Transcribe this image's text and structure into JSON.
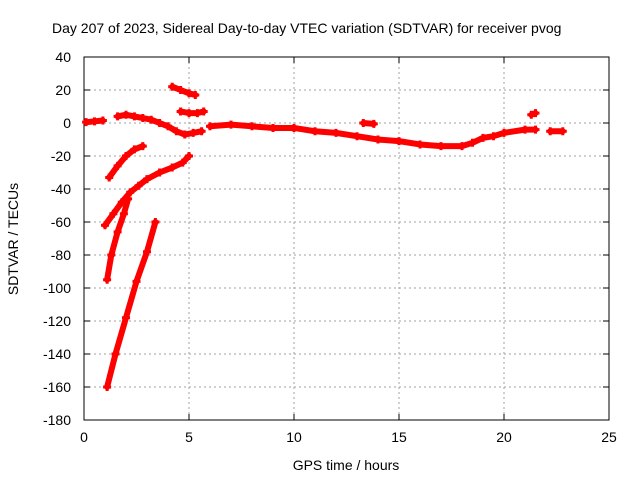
{
  "chart_data": {
    "type": "scatter",
    "title": "Day 207 of 2023, Sidereal Day-to-day VTEC variation (SDTVAR) for receiver pvog",
    "xlabel": "GPS time / hours",
    "ylabel": "SDTVAR / TECUs",
    "xlim": [
      0,
      25
    ],
    "ylim": [
      -180,
      40
    ],
    "xticks": [
      0,
      5,
      10,
      15,
      20,
      25
    ],
    "yticks": [
      40,
      20,
      0,
      -20,
      -40,
      -60,
      -80,
      -100,
      -120,
      -140,
      -160,
      -180
    ],
    "grid": true,
    "marker_color": "#ff0000",
    "series": [
      {
        "name": "track-1",
        "x": [
          0.1,
          0.5,
          0.9
        ],
        "y": [
          0.5,
          1,
          1.5
        ]
      },
      {
        "name": "track-2",
        "x": [
          1.6,
          2.0,
          2.4,
          2.8,
          3.2,
          3.6,
          4.0,
          4.4,
          4.8,
          5.2,
          5.6
        ],
        "y": [
          4,
          5,
          4,
          3,
          2,
          0,
          -2,
          -5,
          -7,
          -6,
          -5
        ]
      },
      {
        "name": "track-3",
        "x": [
          4.2,
          4.6,
          5.0,
          5.3
        ],
        "y": [
          22,
          20,
          18,
          17
        ]
      },
      {
        "name": "track-4",
        "x": [
          4.6,
          5.0,
          5.4,
          5.7
        ],
        "y": [
          7,
          6,
          6,
          7
        ]
      },
      {
        "name": "track-5",
        "x": [
          6.0,
          7.0,
          8.0,
          9.0,
          10.0,
          11.0,
          12.0,
          13.0,
          14.0,
          15.0,
          16.0,
          17.0,
          18.0,
          18.5,
          19.0,
          19.5,
          20.0,
          21.0,
          21.5
        ],
        "y": [
          -2,
          -1,
          -2,
          -3,
          -3,
          -5,
          -6,
          -8,
          -10,
          -11,
          -13,
          -14,
          -14,
          -12,
          -9,
          -8,
          -6,
          -4,
          -4
        ]
      },
      {
        "name": "track-6",
        "x": [
          13.3,
          13.8
        ],
        "y": [
          0,
          -0.5
        ]
      },
      {
        "name": "track-7",
        "x": [
          22.2,
          22.8
        ],
        "y": [
          -5,
          -5
        ]
      },
      {
        "name": "track-8",
        "x": [
          21.3,
          21.5
        ],
        "y": [
          5,
          6
        ]
      },
      {
        "name": "track-9",
        "x": [
          1.2,
          1.6,
          2.0,
          2.4,
          2.8
        ],
        "y": [
          -33,
          -26,
          -20,
          -16,
          -14
        ]
      },
      {
        "name": "track-10",
        "x": [
          1.0,
          1.4,
          1.8,
          2.2,
          2.6,
          3.0,
          3.6,
          4.2,
          4.7,
          5.0
        ],
        "y": [
          -62,
          -55,
          -48,
          -42,
          -38,
          -34,
          -30,
          -27,
          -24,
          -20
        ]
      },
      {
        "name": "track-11",
        "x": [
          1.1,
          1.3,
          1.6,
          1.9,
          2.1
        ],
        "y": [
          -95,
          -80,
          -66,
          -55,
          -46
        ]
      },
      {
        "name": "track-12",
        "x": [
          1.1,
          1.5,
          2.0,
          2.5,
          3.0,
          3.4
        ],
        "y": [
          -160,
          -140,
          -118,
          -96,
          -78,
          -60
        ]
      }
    ]
  }
}
